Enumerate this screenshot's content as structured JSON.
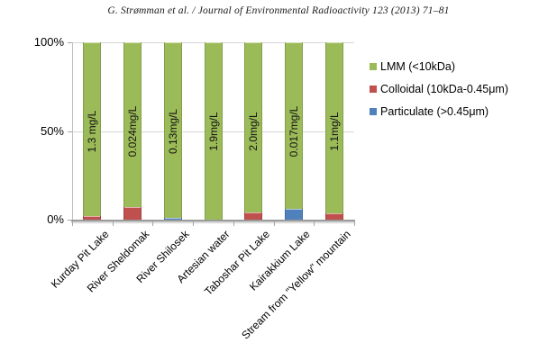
{
  "header": {
    "citation": "G. Strømman et al. / Journal of Environmental Radioactivity 123 (2013) 71–81"
  },
  "chart_data": {
    "type": "bar",
    "stacked": true,
    "percent_stacked": true,
    "title": "",
    "xlabel": "",
    "ylabel": "",
    "categories": [
      "Kurday Pit Lake",
      "River Sheldomak",
      "River Shilosek",
      "Artesian water",
      "Taboshar Pit Lake",
      "Kairakkium Lake",
      "Stream from \"Yellow\" mountain"
    ],
    "bar_value_labels": [
      "1.3 mg/L",
      "0.024mg/L",
      "0.13mg/L",
      "1.9mg/L",
      "2.0mg/L",
      "0.017mg/L",
      "1.1mg/L"
    ],
    "series": [
      {
        "name": "LMM (<10kDa)",
        "color": "#9BBB59",
        "values": [
          98,
          93,
          99,
          100,
          96,
          94,
          96.5
        ]
      },
      {
        "name": "Colloidal (10kDa-0.45μm)",
        "color": "#C0504D",
        "values": [
          2,
          7,
          0,
          0,
          4,
          0,
          3.5
        ]
      },
      {
        "name": "Particulate (>0.45μm)",
        "color": "#4F81BD",
        "values": [
          0,
          0,
          1,
          0,
          0,
          6,
          0
        ]
      }
    ],
    "yticks": [
      "100%",
      "50%",
      "0%"
    ],
    "ylim": [
      0,
      100
    ],
    "grid": true,
    "legend_position": "right",
    "colors": {
      "gridline": "#d6d6d6",
      "axis": "#a6a6a6"
    }
  }
}
